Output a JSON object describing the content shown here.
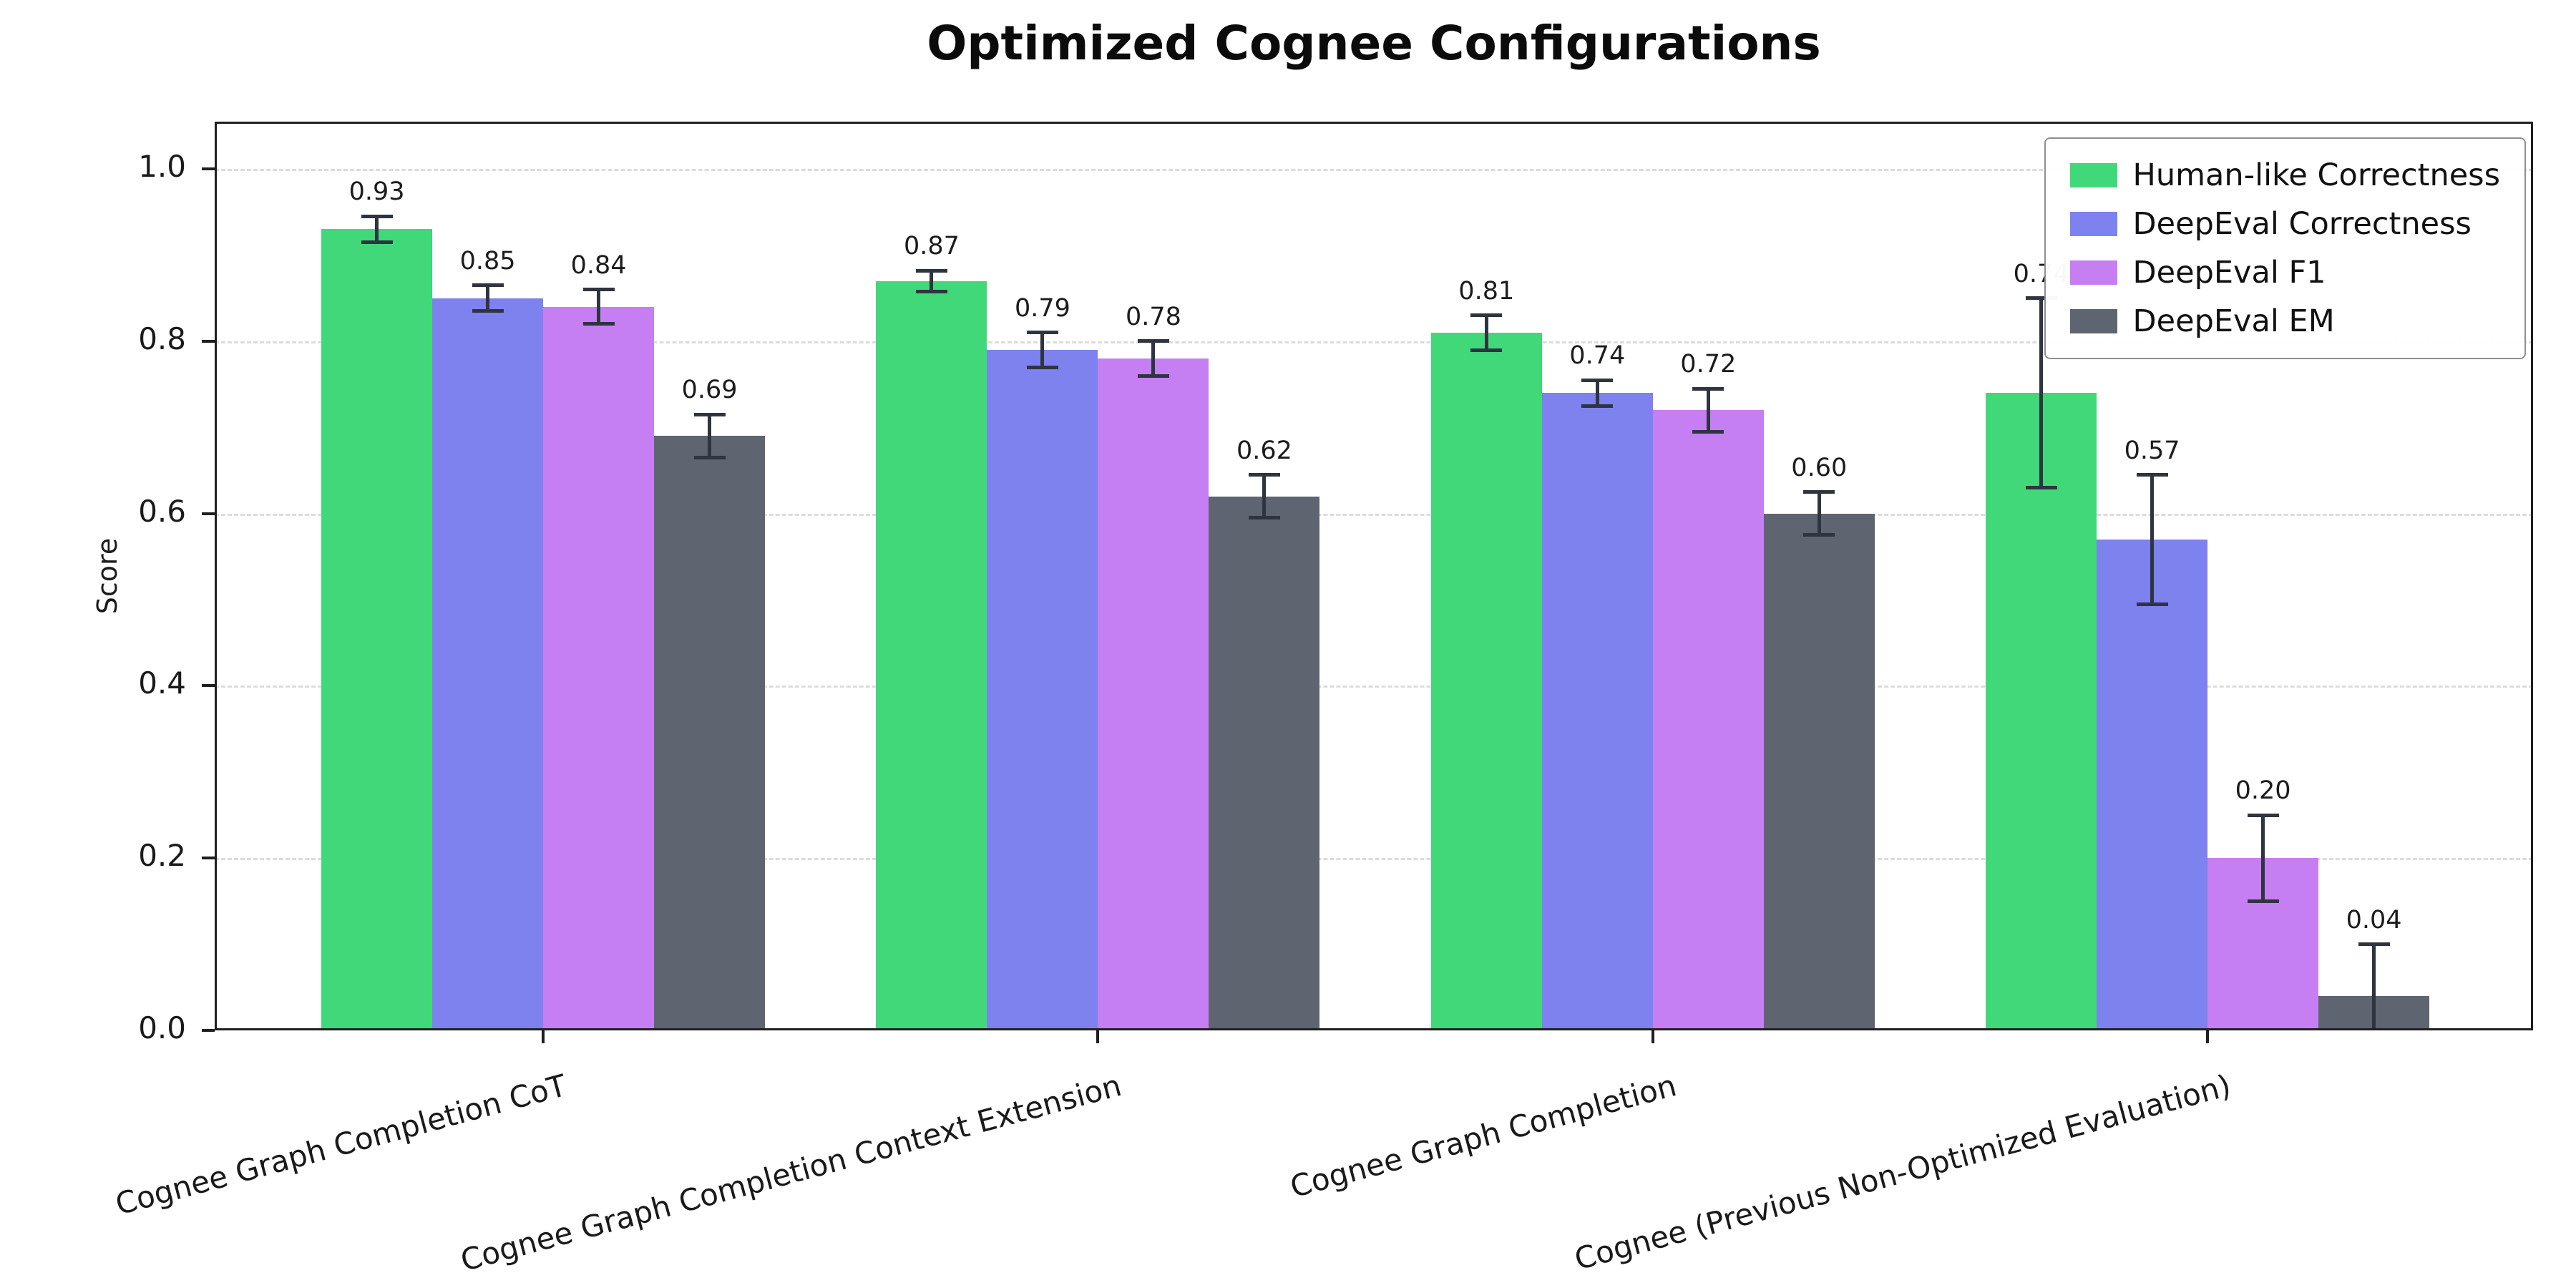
{
  "chart_data": {
    "type": "bar",
    "title": "Optimized Cognee Configurations",
    "xlabel": "",
    "ylabel": "Score",
    "ylim": [
      0,
      1.055
    ],
    "yticks": [
      0.0,
      0.2,
      0.4,
      0.6,
      0.8,
      1.0
    ],
    "grid": "horizontal-dashed",
    "legend_position": "upper-right",
    "error_bar_color": "#2f3440",
    "categories": [
      "Cognee Graph Completion CoT",
      "Cognee Graph Completion Context Extension",
      "Cognee Graph Completion",
      "Cognee (Previous Non-Optimized Evaluation)"
    ],
    "series": [
      {
        "name": "Human-like Correctness",
        "color": "#41d87a",
        "values": [
          0.93,
          0.87,
          0.81,
          0.74
        ],
        "errors": [
          0.015,
          0.012,
          0.02,
          0.11
        ]
      },
      {
        "name": "DeepEval Correctness",
        "color": "#7d82ef",
        "values": [
          0.85,
          0.79,
          0.74,
          0.57
        ],
        "errors": [
          0.015,
          0.02,
          0.015,
          0.075
        ]
      },
      {
        "name": "DeepEval F1",
        "color": "#c67ff2",
        "values": [
          0.84,
          0.78,
          0.72,
          0.2
        ],
        "errors": [
          0.02,
          0.02,
          0.025,
          0.05
        ]
      },
      {
        "name": "DeepEval EM",
        "color": "#5e6470",
        "values": [
          0.69,
          0.62,
          0.6,
          0.04
        ],
        "errors": [
          0.025,
          0.025,
          0.025,
          0.06
        ]
      }
    ]
  }
}
